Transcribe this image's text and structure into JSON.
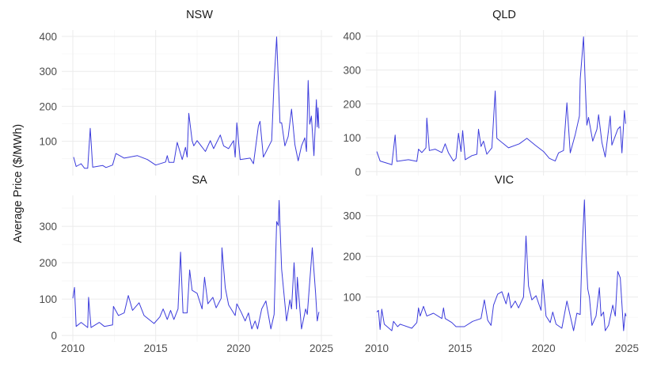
{
  "chart_data": {
    "type": "line",
    "title": "",
    "xlabel": "",
    "ylabel": "Average Price ($/MWh)",
    "xlim": [
      2010,
      2025
    ],
    "xticks": [
      2010,
      2015,
      2020,
      2025
    ],
    "grid": true,
    "line_color": "#3c3cdc",
    "facets": [
      {
        "name": "NSW",
        "ylim": [
          2,
          418
        ],
        "yticks": [
          100,
          200,
          300,
          400
        ],
        "x": [
          2010.05,
          2010.2,
          2010.5,
          2010.7,
          2010.9,
          2011.05,
          2011.2,
          2011.8,
          2012.0,
          2012.4,
          2012.6,
          2013.1,
          2013.9,
          2014.5,
          2015.0,
          2015.6,
          2015.7,
          2015.8,
          2016.1,
          2016.3,
          2016.6,
          2016.8,
          2016.9,
          2017.0,
          2017.2,
          2017.3,
          2017.5,
          2018.0,
          2018.3,
          2018.5,
          2018.9,
          2019.1,
          2019.4,
          2019.7,
          2019.8,
          2019.9,
          2020.1,
          2020.7,
          2020.9,
          2021.2,
          2021.3,
          2021.5,
          2022.0,
          2022.15,
          2022.3,
          2022.4,
          2022.5,
          2022.6,
          2022.8,
          2023.0,
          2023.2,
          2023.4,
          2023.6,
          2023.8,
          2024.0,
          2024.1,
          2024.2,
          2024.3,
          2024.4,
          2024.55,
          2024.7,
          2024.75,
          2024.8,
          2024.85
        ],
        "y": [
          55,
          28,
          36,
          23,
          23,
          137,
          26,
          31,
          25,
          32,
          65,
          52,
          59,
          48,
          32,
          41,
          59,
          40,
          40,
          97,
          48,
          83,
          55,
          180,
          102,
          87,
          102,
          71,
          102,
          79,
          118,
          87,
          79,
          102,
          55,
          153,
          48,
          52,
          36,
          145,
          157,
          55,
          102,
          274,
          398,
          274,
          153,
          153,
          87,
          114,
          192,
          91,
          44,
          87,
          110,
          71,
          274,
          149,
          172,
          59,
          219,
          141,
          196,
          137
        ]
      },
      {
        "name": "QLD",
        "ylim": [
          -12,
          418
        ],
        "yticks": [
          0,
          100,
          200,
          300,
          400
        ],
        "x": [
          2010.0,
          2010.2,
          2010.8,
          2010.9,
          2011.1,
          2011.2,
          2011.9,
          2012.4,
          2012.5,
          2012.7,
          2012.95,
          2013.0,
          2013.15,
          2013.5,
          2013.9,
          2014.1,
          2014.3,
          2014.6,
          2014.75,
          2014.9,
          2015.05,
          2015.15,
          2015.3,
          2015.7,
          2016.0,
          2016.1,
          2016.25,
          2016.4,
          2016.6,
          2016.9,
          2017.1,
          2017.2,
          2017.6,
          2017.9,
          2018.55,
          2019.0,
          2019.5,
          2020.0,
          2020.35,
          2020.7,
          2020.9,
          2021.2,
          2021.4,
          2021.6,
          2021.9,
          2022.15,
          2022.2,
          2022.4,
          2022.5,
          2022.6,
          2022.7,
          2022.95,
          2023.2,
          2023.3,
          2023.5,
          2023.7,
          2024.0,
          2024.1,
          2024.45,
          2024.6,
          2024.7,
          2024.85,
          2024.92
        ],
        "y": [
          59,
          31,
          22,
          20,
          108,
          30,
          35,
          30,
          66,
          56,
          70,
          158,
          62,
          66,
          56,
          82,
          55,
          31,
          39,
          113,
          59,
          121,
          35,
          47,
          51,
          125,
          74,
          90,
          51,
          70,
          238,
          98,
          82,
          70,
          82,
          98,
          78,
          59,
          39,
          31,
          55,
          62,
          203,
          55,
          109,
          164,
          273,
          398,
          262,
          137,
          160,
          90,
          125,
          168,
          86,
          43,
          164,
          78,
          125,
          133,
          55,
          180,
          141
        ]
      },
      {
        "name": "SA",
        "ylim": [
          -17,
          385
        ],
        "yticks": [
          0,
          100,
          200,
          300
        ],
        "x": [
          2010.0,
          2010.1,
          2010.2,
          2010.5,
          2010.9,
          2010.95,
          2011.1,
          2011.6,
          2011.9,
          2012.4,
          2012.45,
          2012.75,
          2013.1,
          2013.35,
          2013.6,
          2014.0,
          2014.3,
          2014.9,
          2015.25,
          2015.45,
          2015.7,
          2015.9,
          2016.1,
          2016.35,
          2016.5,
          2016.65,
          2016.9,
          2017.05,
          2017.2,
          2017.5,
          2017.8,
          2017.95,
          2018.15,
          2018.45,
          2018.65,
          2018.95,
          2019.0,
          2019.2,
          2019.4,
          2019.8,
          2019.9,
          2020.15,
          2020.4,
          2020.6,
          2020.8,
          2021.0,
          2021.15,
          2021.4,
          2021.65,
          2021.95,
          2022.15,
          2022.3,
          2022.4,
          2022.45,
          2022.6,
          2022.9,
          2023.1,
          2023.2,
          2023.35,
          2023.5,
          2023.55,
          2023.8,
          2024.05,
          2024.15,
          2024.45,
          2024.65,
          2024.75,
          2024.85
        ],
        "y": [
          102,
          132,
          25,
          36,
          22,
          105,
          22,
          36,
          25,
          29,
          80,
          55,
          62,
          110,
          69,
          90,
          55,
          33,
          51,
          73,
          44,
          69,
          44,
          73,
          229,
          62,
          62,
          180,
          124,
          116,
          73,
          160,
          87,
          105,
          76,
          102,
          241,
          131,
          84,
          55,
          87,
          65,
          40,
          62,
          18,
          40,
          18,
          73,
          95,
          18,
          58,
          313,
          302,
          371,
          182,
          40,
          98,
          73,
          200,
          73,
          160,
          18,
          73,
          58,
          241,
          116,
          40,
          65
        ]
      },
      {
        "name": "VIC",
        "ylim": [
          -10,
          350
        ],
        "yticks": [
          100,
          200,
          300
        ],
        "x": [
          2010.0,
          2010.1,
          2010.2,
          2010.3,
          2010.45,
          2010.9,
          2011.0,
          2011.25,
          2011.4,
          2012.1,
          2012.4,
          2012.5,
          2012.6,
          2012.8,
          2013.0,
          2013.4,
          2013.9,
          2014.0,
          2014.1,
          2014.5,
          2014.75,
          2015.25,
          2015.75,
          2016.25,
          2016.45,
          2016.65,
          2016.85,
          2017.0,
          2017.25,
          2017.5,
          2017.75,
          2017.9,
          2018.05,
          2018.3,
          2018.5,
          2018.8,
          2018.95,
          2019.1,
          2019.3,
          2019.55,
          2019.85,
          2019.95,
          2020.15,
          2020.4,
          2020.55,
          2020.75,
          2021.1,
          2021.4,
          2021.8,
          2022.0,
          2022.2,
          2022.3,
          2022.45,
          2022.55,
          2022.65,
          2022.75,
          2022.9,
          2023.15,
          2023.35,
          2023.45,
          2023.6,
          2023.7,
          2023.9,
          2024.05,
          2024.15,
          2024.3,
          2024.45,
          2024.6,
          2024.8,
          2024.9,
          2024.95
        ],
        "y": [
          63,
          67,
          20,
          70,
          33,
          17,
          40,
          27,
          33,
          23,
          37,
          73,
          53,
          77,
          53,
          60,
          47,
          73,
          47,
          37,
          27,
          27,
          40,
          47,
          93,
          43,
          30,
          80,
          107,
          113,
          83,
          110,
          73,
          90,
          73,
          100,
          250,
          127,
          93,
          103,
          67,
          143,
          53,
          37,
          63,
          33,
          23,
          90,
          17,
          60,
          57,
          200,
          339,
          200,
          120,
          100,
          30,
          53,
          123,
          53,
          63,
          17,
          30,
          60,
          80,
          53,
          163,
          147,
          17,
          60,
          53
        ]
      }
    ]
  }
}
